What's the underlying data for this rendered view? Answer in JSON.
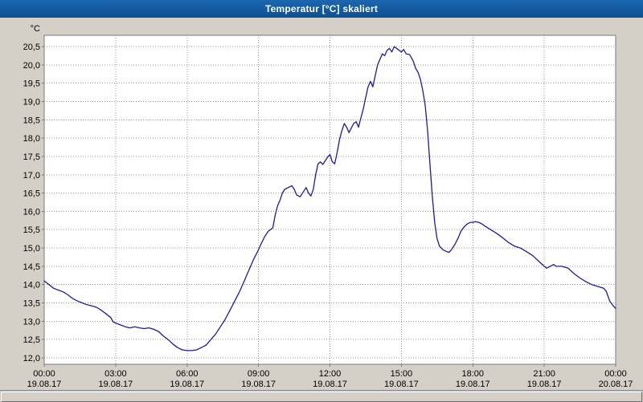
{
  "window": {
    "title": "Temperatur [°C] skaliert"
  },
  "colors": {
    "titlebar": "#15599f",
    "background": "#d4d0c8",
    "plot_background": "#ffffff",
    "plot_border": "#7a7a7a",
    "grid": "#999999",
    "line": "#1c1c96",
    "tick_text": "#000000"
  },
  "chart_data": {
    "type": "line",
    "title": "Temperatur [°C] skaliert",
    "unit_label": "°C",
    "ylim": [
      12.0,
      20.5
    ],
    "ytick_step": 0.5,
    "yticks": [
      "20,5",
      "20,0",
      "19,5",
      "19,0",
      "18,5",
      "18,0",
      "17,5",
      "17,0",
      "16,5",
      "16,0",
      "15,5",
      "15,0",
      "14,5",
      "14,0",
      "13,5",
      "13,0",
      "12,5",
      "12,0"
    ],
    "xticks": [
      {
        "hour": 0,
        "time": "00:00",
        "date": "19.08.17"
      },
      {
        "hour": 3,
        "time": "03:00",
        "date": "19.08.17"
      },
      {
        "hour": 6,
        "time": "06:00",
        "date": "19.08.17"
      },
      {
        "hour": 9,
        "time": "09:00",
        "date": "19.08.17"
      },
      {
        "hour": 12,
        "time": "12:00",
        "date": "19.08.17"
      },
      {
        "hour": 15,
        "time": "15:00",
        "date": "19.08.17"
      },
      {
        "hour": 18,
        "time": "18:00",
        "date": "19.08.17"
      },
      {
        "hour": 21,
        "time": "21:00",
        "date": "19.08.17"
      },
      {
        "hour": 24,
        "time": "00:00",
        "date": "20.08.17"
      }
    ],
    "grid": true,
    "legend": "none",
    "series": [
      {
        "name": "Temperatur",
        "color": "#1c1c96",
        "points": [
          [
            0,
            14.1
          ],
          [
            0.2,
            14.0
          ],
          [
            0.4,
            13.9
          ],
          [
            0.6,
            13.85
          ],
          [
            0.8,
            13.8
          ],
          [
            1.0,
            13.72
          ],
          [
            1.2,
            13.62
          ],
          [
            1.4,
            13.55
          ],
          [
            1.6,
            13.5
          ],
          [
            1.8,
            13.45
          ],
          [
            2.0,
            13.42
          ],
          [
            2.2,
            13.38
          ],
          [
            2.4,
            13.3
          ],
          [
            2.6,
            13.2
          ],
          [
            2.8,
            13.1
          ],
          [
            2.9,
            12.98
          ],
          [
            3.0,
            12.95
          ],
          [
            3.2,
            12.9
          ],
          [
            3.4,
            12.85
          ],
          [
            3.6,
            12.82
          ],
          [
            3.8,
            12.85
          ],
          [
            4.0,
            12.82
          ],
          [
            4.2,
            12.8
          ],
          [
            4.4,
            12.82
          ],
          [
            4.6,
            12.78
          ],
          [
            4.8,
            12.72
          ],
          [
            5.0,
            12.6
          ],
          [
            5.2,
            12.5
          ],
          [
            5.4,
            12.38
          ],
          [
            5.6,
            12.28
          ],
          [
            5.8,
            12.22
          ],
          [
            6.0,
            12.2
          ],
          [
            6.2,
            12.2
          ],
          [
            6.4,
            12.22
          ],
          [
            6.6,
            12.28
          ],
          [
            6.8,
            12.35
          ],
          [
            7.0,
            12.5
          ],
          [
            7.2,
            12.65
          ],
          [
            7.4,
            12.85
          ],
          [
            7.6,
            13.05
          ],
          [
            7.8,
            13.3
          ],
          [
            8.0,
            13.55
          ],
          [
            8.2,
            13.8
          ],
          [
            8.4,
            14.1
          ],
          [
            8.6,
            14.4
          ],
          [
            8.8,
            14.7
          ],
          [
            9.0,
            14.95
          ],
          [
            9.1,
            15.1
          ],
          [
            9.25,
            15.3
          ],
          [
            9.4,
            15.45
          ],
          [
            9.5,
            15.5
          ],
          [
            9.6,
            15.55
          ],
          [
            9.7,
            15.9
          ],
          [
            9.8,
            16.15
          ],
          [
            9.9,
            16.3
          ],
          [
            10.0,
            16.5
          ],
          [
            10.1,
            16.6
          ],
          [
            10.25,
            16.65
          ],
          [
            10.4,
            16.7
          ],
          [
            10.5,
            16.6
          ],
          [
            10.6,
            16.45
          ],
          [
            10.75,
            16.4
          ],
          [
            10.9,
            16.55
          ],
          [
            11.0,
            16.65
          ],
          [
            11.1,
            16.5
          ],
          [
            11.2,
            16.42
          ],
          [
            11.3,
            16.6
          ],
          [
            11.4,
            17.0
          ],
          [
            11.5,
            17.3
          ],
          [
            11.6,
            17.35
          ],
          [
            11.7,
            17.28
          ],
          [
            11.8,
            17.38
          ],
          [
            11.9,
            17.48
          ],
          [
            12.0,
            17.55
          ],
          [
            12.1,
            17.35
          ],
          [
            12.2,
            17.3
          ],
          [
            12.3,
            17.6
          ],
          [
            12.4,
            17.95
          ],
          [
            12.5,
            18.2
          ],
          [
            12.6,
            18.4
          ],
          [
            12.7,
            18.3
          ],
          [
            12.8,
            18.15
          ],
          [
            12.9,
            18.28
          ],
          [
            13.0,
            18.4
          ],
          [
            13.1,
            18.45
          ],
          [
            13.2,
            18.3
          ],
          [
            13.3,
            18.55
          ],
          [
            13.4,
            18.8
          ],
          [
            13.5,
            19.1
          ],
          [
            13.6,
            19.4
          ],
          [
            13.7,
            19.55
          ],
          [
            13.8,
            19.4
          ],
          [
            13.9,
            19.7
          ],
          [
            14.0,
            20.0
          ],
          [
            14.1,
            20.15
          ],
          [
            14.2,
            20.3
          ],
          [
            14.3,
            20.25
          ],
          [
            14.4,
            20.4
          ],
          [
            14.5,
            20.45
          ],
          [
            14.6,
            20.35
          ],
          [
            14.7,
            20.5
          ],
          [
            14.8,
            20.45
          ],
          [
            14.9,
            20.4
          ],
          [
            15.0,
            20.35
          ],
          [
            15.1,
            20.42
          ],
          [
            15.2,
            20.3
          ],
          [
            15.35,
            20.28
          ],
          [
            15.5,
            20.1
          ],
          [
            15.6,
            19.9
          ],
          [
            15.7,
            19.8
          ],
          [
            15.8,
            19.6
          ],
          [
            15.9,
            19.3
          ],
          [
            16.0,
            18.9
          ],
          [
            16.1,
            18.2
          ],
          [
            16.2,
            17.3
          ],
          [
            16.3,
            16.4
          ],
          [
            16.4,
            15.7
          ],
          [
            16.5,
            15.25
          ],
          [
            16.6,
            15.05
          ],
          [
            16.75,
            14.95
          ],
          [
            16.9,
            14.9
          ],
          [
            17.0,
            14.88
          ],
          [
            17.1,
            14.95
          ],
          [
            17.25,
            15.1
          ],
          [
            17.4,
            15.3
          ],
          [
            17.5,
            15.45
          ],
          [
            17.6,
            15.55
          ],
          [
            17.75,
            15.65
          ],
          [
            17.9,
            15.7
          ],
          [
            18.0,
            15.7
          ],
          [
            18.1,
            15.72
          ],
          [
            18.25,
            15.7
          ],
          [
            18.4,
            15.65
          ],
          [
            18.5,
            15.6
          ],
          [
            18.75,
            15.5
          ],
          [
            19.0,
            15.4
          ],
          [
            19.25,
            15.28
          ],
          [
            19.5,
            15.15
          ],
          [
            19.75,
            15.05
          ],
          [
            20.0,
            15.0
          ],
          [
            20.25,
            14.9
          ],
          [
            20.5,
            14.8
          ],
          [
            20.75,
            14.65
          ],
          [
            21.0,
            14.5
          ],
          [
            21.1,
            14.45
          ],
          [
            21.25,
            14.5
          ],
          [
            21.4,
            14.55
          ],
          [
            21.5,
            14.5
          ],
          [
            21.75,
            14.5
          ],
          [
            22.0,
            14.45
          ],
          [
            22.25,
            14.3
          ],
          [
            22.5,
            14.18
          ],
          [
            22.75,
            14.08
          ],
          [
            23.0,
            14.0
          ],
          [
            23.25,
            13.95
          ],
          [
            23.5,
            13.9
          ],
          [
            23.6,
            13.82
          ],
          [
            23.75,
            13.55
          ],
          [
            23.9,
            13.42
          ],
          [
            24.0,
            13.35
          ]
        ]
      }
    ]
  }
}
